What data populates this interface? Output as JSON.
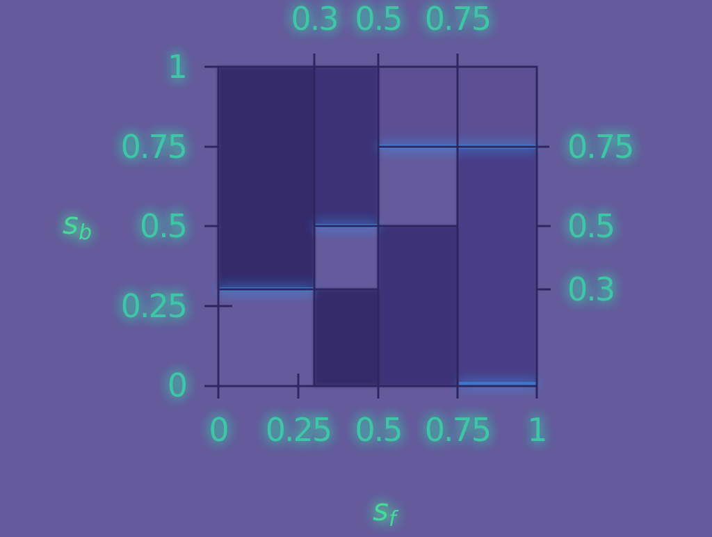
{
  "colors": {
    "background": "#655a9c",
    "dark_region": "#35296b",
    "mid_region": "#4a3d85",
    "light_region": "#655a9c",
    "frame": "#2e2660",
    "label": "#3ec7a6",
    "glow": "#39a4ff"
  },
  "axes": {
    "xlabel": "s",
    "xlabel_sub": "f",
    "ylabel": "s",
    "ylabel_sub": "b",
    "bottom_ticks": [
      "0",
      "0.25",
      "0.5",
      "0.75",
      "1"
    ],
    "top_ticks": [
      "0.3",
      "0.5",
      "0.75"
    ],
    "left_ticks": [
      "0",
      "0.25",
      "0.5",
      "0.75",
      "1"
    ],
    "right_ticks": [
      "0.3",
      "0.5",
      "0.75"
    ]
  }
}
